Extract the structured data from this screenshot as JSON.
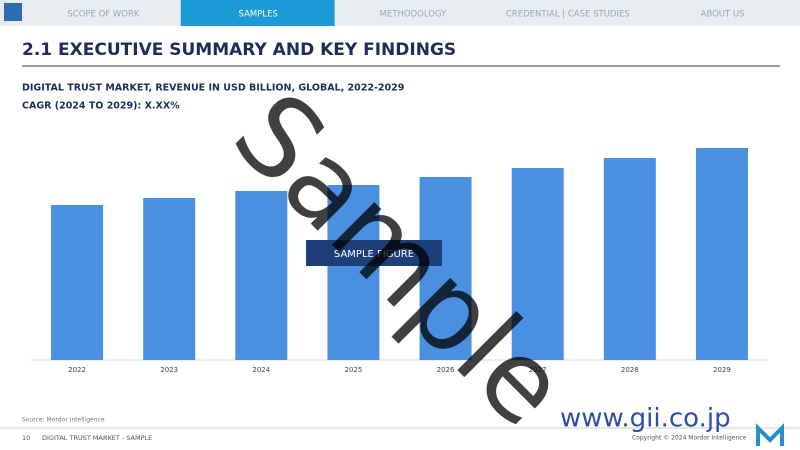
{
  "nav": {
    "tabs": [
      "SCOPE OF WORK",
      "SAMPLES",
      "METHODOLOGY",
      "CREDENTIAL | CASE STUDIES",
      "ABOUT US"
    ],
    "active": 1
  },
  "header": {
    "title": "2.1 EXECUTIVE SUMMARY AND KEY FINDINGS"
  },
  "chart_data": {
    "type": "bar",
    "title": "DIGITAL TRUST MARKET, REVENUE IN USD BILLION, GLOBAL, 2022-2029",
    "subtitle": "CAGR (2024 TO 2029): X.XX%",
    "categories": [
      "2022",
      "2023",
      "2024",
      "2025",
      "2026",
      "2027",
      "2028",
      "2029"
    ],
    "values": [
      155,
      162,
      169,
      175,
      183,
      192,
      202,
      212
    ],
    "color": "#4a8fe0",
    "annotation": "SAMPLE FIGURE",
    "watermark": "Sample"
  },
  "footer": {
    "source": "Source: Mordor Intelligence",
    "page": "10",
    "report": "DIGITAL TRUST MARKET - SAMPLE",
    "copyright": "Copyright © 2024 Mordor Intelligence",
    "site": "www.gii.co.jp"
  }
}
